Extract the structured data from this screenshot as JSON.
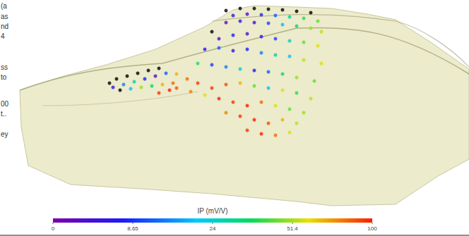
{
  "chart_data": {
    "type": "scatter",
    "tick_labels": false,
    "marker": "circle",
    "xlim": [
      0,
      664
    ],
    "ylim": [
      0,
      300
    ],
    "points": [
      [
        320,
        15,
        null
      ],
      [
        340,
        12,
        null
      ],
      [
        360,
        12,
        null
      ],
      [
        380,
        13,
        null
      ],
      [
        400,
        14,
        null
      ],
      [
        420,
        16,
        null
      ],
      [
        440,
        18,
        null
      ],
      [
        330,
        22,
        5
      ],
      [
        350,
        20,
        3
      ],
      [
        370,
        21,
        8
      ],
      [
        390,
        22,
        12
      ],
      [
        410,
        24,
        30
      ],
      [
        430,
        26,
        40
      ],
      [
        450,
        30,
        45
      ],
      [
        320,
        32,
        2
      ],
      [
        340,
        30,
        6
      ],
      [
        360,
        32,
        4
      ],
      [
        380,
        33,
        10
      ],
      [
        400,
        35,
        20
      ],
      [
        420,
        37,
        35
      ],
      [
        440,
        40,
        50
      ],
      [
        455,
        45,
        55
      ],
      [
        300,
        45,
        null
      ],
      [
        310,
        55,
        3
      ],
      [
        330,
        50,
        8
      ],
      [
        350,
        48,
        4
      ],
      [
        370,
        52,
        6
      ],
      [
        390,
        55,
        10
      ],
      [
        410,
        58,
        25
      ],
      [
        430,
        60,
        45
      ],
      [
        450,
        65,
        60
      ],
      [
        290,
        70,
        6
      ],
      [
        310,
        68,
        12
      ],
      [
        330,
        72,
        5
      ],
      [
        350,
        70,
        8
      ],
      [
        370,
        75,
        15
      ],
      [
        390,
        78,
        30
      ],
      [
        410,
        80,
        20
      ],
      [
        430,
        85,
        55
      ],
      [
        455,
        90,
        60
      ],
      [
        280,
        90,
        40
      ],
      [
        300,
        92,
        10
      ],
      [
        320,
        95,
        15
      ],
      [
        340,
        98,
        25
      ],
      [
        360,
        100,
        7
      ],
      [
        380,
        102,
        12
      ],
      [
        400,
        105,
        35
      ],
      [
        420,
        110,
        50
      ],
      [
        445,
        115,
        45
      ],
      [
        250,
        105,
        70
      ],
      [
        265,
        112,
        85
      ],
      [
        280,
        118,
        95
      ],
      [
        250,
        125,
        90
      ],
      [
        270,
        130,
        80
      ],
      [
        290,
        135,
        60
      ],
      [
        300,
        125,
        95
      ],
      [
        320,
        120,
        90
      ],
      [
        340,
        118,
        70
      ],
      [
        360,
        122,
        45
      ],
      [
        380,
        125,
        20
      ],
      [
        400,
        128,
        60
      ],
      [
        420,
        132,
        40
      ],
      [
        440,
        140,
        55
      ],
      [
        310,
        140,
        100
      ],
      [
        330,
        145,
        95
      ],
      [
        350,
        150,
        100
      ],
      [
        370,
        145,
        85
      ],
      [
        390,
        150,
        60
      ],
      [
        410,
        155,
        45
      ],
      [
        430,
        160,
        50
      ],
      [
        320,
        160,
        80
      ],
      [
        340,
        165,
        95
      ],
      [
        360,
        170,
        100
      ],
      [
        380,
        175,
        90
      ],
      [
        400,
        170,
        70
      ],
      [
        420,
        175,
        55
      ],
      [
        350,
        185,
        95
      ],
      [
        370,
        190,
        100
      ],
      [
        390,
        192,
        85
      ],
      [
        410,
        188,
        60
      ],
      [
        155,
        118,
        null
      ],
      [
        165,
        112,
        null
      ],
      [
        180,
        108,
        null
      ],
      [
        195,
        104,
        null
      ],
      [
        210,
        100,
        null
      ],
      [
        225,
        97,
        null
      ],
      [
        160,
        124,
        5
      ],
      [
        175,
        120,
        15
      ],
      [
        190,
        116,
        30
      ],
      [
        205,
        112,
        8
      ],
      [
        220,
        108,
        3
      ],
      [
        235,
        104,
        12
      ],
      [
        170,
        128,
        null
      ],
      [
        185,
        126,
        20
      ],
      [
        200,
        124,
        50
      ],
      [
        215,
        122,
        35
      ],
      [
        230,
        120,
        70
      ],
      [
        245,
        118,
        85
      ],
      [
        225,
        132,
        95
      ],
      [
        240,
        128,
        100
      ]
    ],
    "colorbar_label": "IP (mV/V)",
    "colorbar_range": [
      0,
      100
    ],
    "colorbar_ticks": [
      0,
      8.65,
      24,
      51.4,
      100
    ],
    "side_text": [
      "(a",
      "as",
      "nd",
      "4",
      "ss",
      "to",
      "00",
      "t..",
      "ey"
    ]
  }
}
